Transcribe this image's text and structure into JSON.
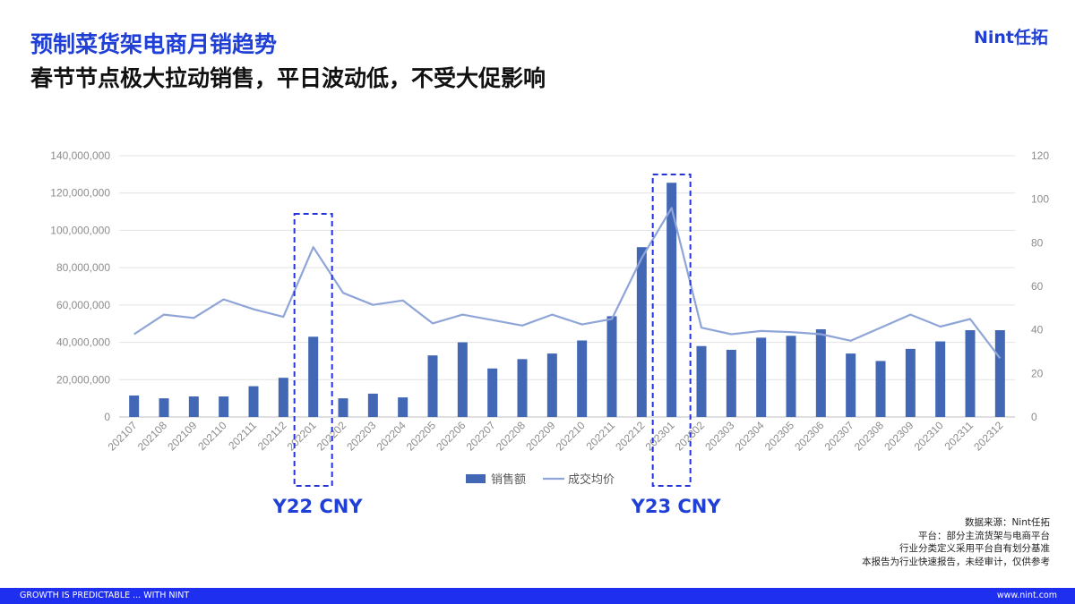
{
  "header": {
    "title": "预制菜货架电商月销趋势",
    "subtitle": "春节节点极大拉动销售，平日波动低，不受大促影响",
    "logo": "Nint任拓"
  },
  "chart_data": {
    "type": "bar",
    "categories": [
      "202107",
      "202108",
      "202109",
      "202110",
      "202111",
      "202112",
      "202201",
      "202202",
      "202203",
      "202204",
      "202205",
      "202206",
      "202207",
      "202208",
      "202209",
      "202210",
      "202211",
      "202212",
      "202301",
      "202302",
      "202303",
      "202304",
      "202305",
      "202306",
      "202307",
      "202308",
      "202309",
      "202310",
      "202311",
      "202312"
    ],
    "series": [
      {
        "name": "销售额",
        "type": "bar",
        "axis": "left",
        "color": "#4267b5",
        "values": [
          11500000,
          10000000,
          11000000,
          11000000,
          16500000,
          21000000,
          43000000,
          10000000,
          12500000,
          10500000,
          33000000,
          40000000,
          26000000,
          31000000,
          34000000,
          41000000,
          54000000,
          91000000,
          125500000,
          38000000,
          36000000,
          42500000,
          43500000,
          47000000,
          34000000,
          30000000,
          36500000,
          40500000,
          46500000,
          46500000
        ]
      },
      {
        "name": "成交均价",
        "type": "line",
        "axis": "right",
        "color": "#8fa5d8",
        "values": [
          38,
          47,
          45.5,
          54,
          49.5,
          46,
          78,
          57,
          51.5,
          53.5,
          43,
          47,
          44.5,
          42,
          47,
          42.5,
          45,
          73,
          96,
          41,
          38,
          39.5,
          39,
          38,
          35,
          41,
          47,
          41.5,
          45,
          27
        ]
      }
    ],
    "y_left": {
      "min": 0,
      "max": 140000000,
      "step": 20000000,
      "tick_labels": [
        "0",
        "20,000,000",
        "40,000,000",
        "60,000,000",
        "80,000,000",
        "100,000,000",
        "120,000,000",
        "140,000,000"
      ]
    },
    "y_right": {
      "min": 0,
      "max": 120,
      "step": 20,
      "tick_labels": [
        "0",
        "20",
        "40",
        "60",
        "80",
        "100",
        "120"
      ]
    },
    "grid": true,
    "legend": {
      "position": "bottom",
      "labels": [
        "销售额",
        "成交均价"
      ]
    },
    "annotations": [
      {
        "label": "Y22 CNY",
        "category": "202201"
      },
      {
        "label": "Y23 CNY",
        "category": "202301"
      }
    ]
  },
  "notes": [
    "数据来源：Nint任拓",
    "平台：部分主流货架与电商平台",
    "行业分类定义采用平台自有划分基准",
    "本报告为行业快速报告，未经审计，仅供参考"
  ],
  "footer": {
    "left": "GROWTH IS PREDICTABLE ... WITH NINT",
    "right": "www.nint.com"
  }
}
